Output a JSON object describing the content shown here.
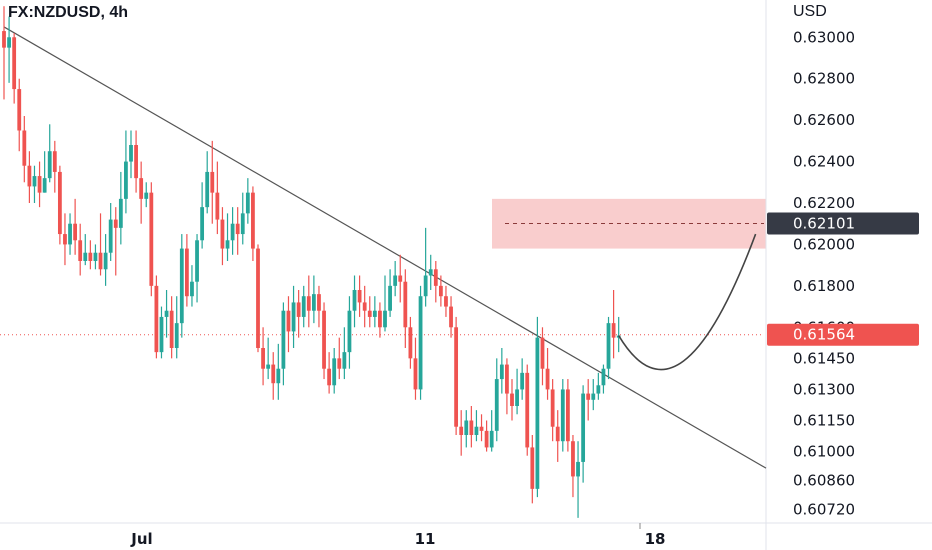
{
  "header": {
    "symbol": "FX:NZDUSD, 4h"
  },
  "colors": {
    "up": "#26a69a",
    "down": "#ef5350",
    "trendline": "#555555",
    "zone": "#f8c8c8",
    "current_price_bg": "#ef5350",
    "target_price_bg": "#363a45"
  },
  "chart_data": {
    "type": "candlestick",
    "title": "FX:NZDUSD, 4h",
    "ylabel": "USD",
    "ylim": [
      0.6066,
      0.6318
    ],
    "y_ticks": [
      "0.63000",
      "0.62800",
      "0.62600",
      "0.62400",
      "0.62200",
      "0.62000",
      "0.61800",
      "0.61600",
      "0.61450",
      "0.61300",
      "0.61150",
      "0.61000",
      "0.60860",
      "0.60720"
    ],
    "x_ticks": [
      "Jul",
      "11",
      "18"
    ],
    "current_price": "0.61564",
    "target_price": "0.62101",
    "supply_zone": [
      0.6198,
      0.6222
    ],
    "candles": [
      [
        0.6303,
        0.6295,
        0.6315,
        0.627
      ],
      [
        0.6295,
        0.63,
        0.631,
        0.6278
      ],
      [
        0.63,
        0.6275,
        0.6302,
        0.6268
      ],
      [
        0.6275,
        0.6255,
        0.628,
        0.6245
      ],
      [
        0.6255,
        0.6238,
        0.6262,
        0.623
      ],
      [
        0.6238,
        0.6228,
        0.6245,
        0.622
      ],
      [
        0.6228,
        0.6233,
        0.6238,
        0.622
      ],
      [
        0.6233,
        0.6225,
        0.624,
        0.6218
      ],
      [
        0.6225,
        0.6232,
        0.6245,
        0.6225
      ],
      [
        0.6232,
        0.6245,
        0.6258,
        0.623
      ],
      [
        0.6245,
        0.6235,
        0.625,
        0.6225
      ],
      [
        0.6235,
        0.6205,
        0.6238,
        0.62
      ],
      [
        0.6205,
        0.62,
        0.6215,
        0.619
      ],
      [
        0.62,
        0.621,
        0.6215,
        0.6195
      ],
      [
        0.621,
        0.6202,
        0.6222,
        0.6195
      ],
      [
        0.6202,
        0.6192,
        0.621,
        0.6185
      ],
      [
        0.6192,
        0.6196,
        0.6205,
        0.619
      ],
      [
        0.6196,
        0.6192,
        0.6202,
        0.6188
      ],
      [
        0.6192,
        0.6196,
        0.62,
        0.6188
      ],
      [
        0.6196,
        0.6188,
        0.6215,
        0.6185
      ],
      [
        0.6188,
        0.6196,
        0.6205,
        0.618
      ],
      [
        0.6196,
        0.6212,
        0.622,
        0.6192
      ],
      [
        0.6212,
        0.6208,
        0.6218,
        0.6185
      ],
      [
        0.6208,
        0.6222,
        0.6235,
        0.62
      ],
      [
        0.6222,
        0.624,
        0.6255,
        0.6215
      ],
      [
        0.624,
        0.6248,
        0.6255,
        0.6232
      ],
      [
        0.6248,
        0.6232,
        0.6255,
        0.6225
      ],
      [
        0.6232,
        0.6222,
        0.624,
        0.621
      ],
      [
        0.6222,
        0.6225,
        0.623,
        0.6218
      ],
      [
        0.6225,
        0.618,
        0.623,
        0.6175
      ],
      [
        0.618,
        0.6148,
        0.6185,
        0.6145
      ],
      [
        0.6148,
        0.6165,
        0.617,
        0.6145
      ],
      [
        0.6165,
        0.6168,
        0.6178,
        0.6155
      ],
      [
        0.6168,
        0.615,
        0.6175,
        0.6145
      ],
      [
        0.615,
        0.6162,
        0.6175,
        0.6145
      ],
      [
        0.6162,
        0.6198,
        0.6205,
        0.6155
      ],
      [
        0.6198,
        0.6175,
        0.6205,
        0.617
      ],
      [
        0.6175,
        0.6182,
        0.619,
        0.617
      ],
      [
        0.6182,
        0.6202,
        0.6205,
        0.6172
      ],
      [
        0.6202,
        0.6218,
        0.623,
        0.6198
      ],
      [
        0.6218,
        0.6235,
        0.6245,
        0.6215
      ],
      [
        0.6235,
        0.6225,
        0.625,
        0.621
      ],
      [
        0.6225,
        0.6212,
        0.624,
        0.6205
      ],
      [
        0.6212,
        0.6198,
        0.6218,
        0.619
      ],
      [
        0.6198,
        0.6202,
        0.6215,
        0.6192
      ],
      [
        0.6202,
        0.621,
        0.6218,
        0.6195
      ],
      [
        0.621,
        0.6205,
        0.6218,
        0.6195
      ],
      [
        0.6205,
        0.6215,
        0.6225,
        0.62
      ],
      [
        0.6215,
        0.6225,
        0.6232,
        0.621
      ],
      [
        0.6225,
        0.6198,
        0.6228,
        0.6192
      ],
      [
        0.6198,
        0.615,
        0.62,
        0.6148
      ],
      [
        0.615,
        0.614,
        0.616,
        0.6132
      ],
      [
        0.614,
        0.6142,
        0.6155,
        0.6135
      ],
      [
        0.6142,
        0.6133,
        0.6148,
        0.6125
      ],
      [
        0.6133,
        0.614,
        0.6152,
        0.6125
      ],
      [
        0.614,
        0.6168,
        0.6172,
        0.6132
      ],
      [
        0.6168,
        0.6158,
        0.6175,
        0.6148
      ],
      [
        0.6158,
        0.6172,
        0.618,
        0.615
      ],
      [
        0.6172,
        0.6165,
        0.6178,
        0.6155
      ],
      [
        0.6165,
        0.6175,
        0.618,
        0.616
      ],
      [
        0.6175,
        0.6168,
        0.6185,
        0.616
      ],
      [
        0.6168,
        0.6176,
        0.6185,
        0.6162
      ],
      [
        0.6176,
        0.6168,
        0.618,
        0.616
      ],
      [
        0.6168,
        0.614,
        0.6172,
        0.6135
      ],
      [
        0.614,
        0.6132,
        0.6148,
        0.6128
      ],
      [
        0.6132,
        0.6145,
        0.615,
        0.6128
      ],
      [
        0.6145,
        0.614,
        0.6155,
        0.6135
      ],
      [
        0.614,
        0.6148,
        0.616,
        0.6135
      ],
      [
        0.6148,
        0.6168,
        0.6175,
        0.614
      ],
      [
        0.6168,
        0.6178,
        0.6185,
        0.616
      ],
      [
        0.6178,
        0.6172,
        0.6185,
        0.6165
      ],
      [
        0.6172,
        0.6168,
        0.618,
        0.616
      ],
      [
        0.6168,
        0.6165,
        0.6175,
        0.616
      ],
      [
        0.6165,
        0.6168,
        0.6175,
        0.616
      ],
      [
        0.6168,
        0.616,
        0.6172,
        0.6155
      ],
      [
        0.616,
        0.6168,
        0.6185,
        0.6158
      ],
      [
        0.6168,
        0.618,
        0.6188,
        0.6165
      ],
      [
        0.618,
        0.6185,
        0.6192,
        0.6175
      ],
      [
        0.6185,
        0.6182,
        0.6195,
        0.6172
      ],
      [
        0.6182,
        0.616,
        0.6188,
        0.615
      ],
      [
        0.616,
        0.6145,
        0.6165,
        0.614
      ],
      [
        0.6145,
        0.613,
        0.6155,
        0.6125
      ],
      [
        0.613,
        0.6175,
        0.618,
        0.6125
      ],
      [
        0.6175,
        0.6185,
        0.6208,
        0.617
      ],
      [
        0.6185,
        0.6188,
        0.6195,
        0.6178
      ],
      [
        0.6188,
        0.618,
        0.6192,
        0.6172
      ],
      [
        0.618,
        0.6175,
        0.6185,
        0.617
      ],
      [
        0.6175,
        0.617,
        0.618,
        0.6165
      ],
      [
        0.617,
        0.616,
        0.6175,
        0.6155
      ],
      [
        0.616,
        0.6112,
        0.6165,
        0.6108
      ],
      [
        0.6112,
        0.6108,
        0.612,
        0.6098
      ],
      [
        0.6108,
        0.6115,
        0.612,
        0.6102
      ],
      [
        0.6115,
        0.6108,
        0.6122,
        0.6102
      ],
      [
        0.6108,
        0.6112,
        0.612,
        0.6105
      ],
      [
        0.6112,
        0.611,
        0.6118,
        0.6105
      ],
      [
        0.611,
        0.6102,
        0.6115,
        0.61
      ],
      [
        0.6102,
        0.611,
        0.612,
        0.61
      ],
      [
        0.611,
        0.6135,
        0.6145,
        0.6105
      ],
      [
        0.6135,
        0.6142,
        0.615,
        0.6128
      ],
      [
        0.6142,
        0.6128,
        0.6145,
        0.6118
      ],
      [
        0.6128,
        0.6122,
        0.6135,
        0.6115
      ],
      [
        0.6122,
        0.613,
        0.614,
        0.6118
      ],
      [
        0.613,
        0.6138,
        0.6145,
        0.6125
      ],
      [
        0.6138,
        0.6102,
        0.6142,
        0.6098
      ],
      [
        0.6102,
        0.6082,
        0.6108,
        0.6075
      ],
      [
        0.6082,
        0.6155,
        0.6165,
        0.6078
      ],
      [
        0.6155,
        0.614,
        0.616,
        0.6132
      ],
      [
        0.614,
        0.613,
        0.615,
        0.6125
      ],
      [
        0.613,
        0.6112,
        0.6135,
        0.6105
      ],
      [
        0.6112,
        0.6105,
        0.612,
        0.6095
      ],
      [
        0.6105,
        0.613,
        0.6135,
        0.61
      ],
      [
        0.613,
        0.6105,
        0.6135,
        0.61
      ],
      [
        0.6105,
        0.6088,
        0.6108,
        0.6078
      ],
      [
        0.6088,
        0.6095,
        0.6105,
        0.6068
      ],
      [
        0.6095,
        0.6128,
        0.6132,
        0.6085
      ],
      [
        0.6128,
        0.6125,
        0.6135,
        0.6115
      ],
      [
        0.6125,
        0.6128,
        0.6135,
        0.612
      ],
      [
        0.6128,
        0.6132,
        0.6138,
        0.6125
      ],
      [
        0.6132,
        0.614,
        0.6142,
        0.6128
      ],
      [
        0.614,
        0.6162,
        0.6165,
        0.6135
      ],
      [
        0.6162,
        0.6155,
        0.6178,
        0.6145
      ],
      [
        0.6155,
        0.6156,
        0.6165,
        0.6148
      ]
    ],
    "trendline": [
      [
        0,
        0.6305
      ],
      [
        150,
        0.6092
      ]
    ],
    "projection": [
      [
        121,
        0.6156
      ],
      [
        133,
        0.6131
      ],
      [
        145,
        0.6205
      ]
    ]
  }
}
